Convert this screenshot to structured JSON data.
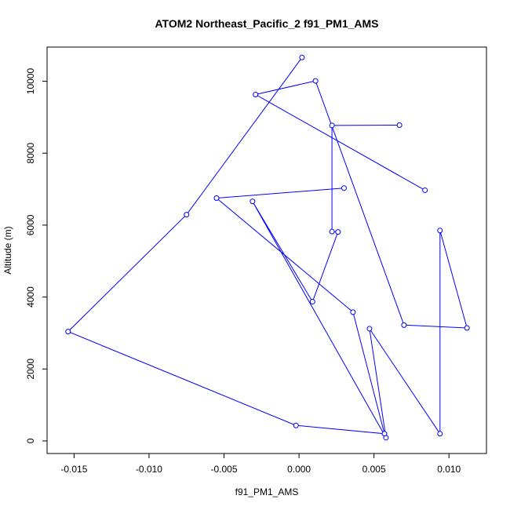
{
  "chart_data": {
    "type": "line",
    "title": "ATOM2 Northeast_Pacific_2 f91_PM1_AMS",
    "xlabel": "f91_PM1_AMS",
    "ylabel": "Altitude (m)",
    "xlim": [
      -0.0168,
      0.0125
    ],
    "ylim": [
      -350,
      10950
    ],
    "x_ticks": [
      -0.015,
      -0.01,
      -0.005,
      0.0,
      0.005,
      0.01
    ],
    "x_tick_labels": [
      "-0.015",
      "-0.010",
      "-0.005",
      "0.000",
      "0.005",
      "0.010"
    ],
    "y_ticks": [
      0,
      2000,
      4000,
      6000,
      8000,
      10000
    ],
    "y_tick_labels": [
      "0",
      "2000",
      "4000",
      "6000",
      "8000",
      "10000"
    ],
    "grid": false,
    "legend": "none",
    "series_color": "#0000ff",
    "series": [
      {
        "name": "",
        "marker": "open-circle",
        "x": [
          0.0067,
          0.0022,
          0.0022,
          0.0026,
          0.0009,
          -0.0031,
          0.0058,
          0.0047,
          0.0094,
          0.0094,
          0.0112,
          0.007,
          0.0011,
          -0.0029,
          0.0084
        ],
        "y": [
          8780,
          8770,
          5820,
          5810,
          3870,
          6660,
          90,
          3120,
          200,
          5850,
          3140,
          3220,
          10010,
          9630,
          6970
        ]
      },
      {
        "name": "",
        "marker": "open-circle",
        "x": [
          0.003,
          -0.0055,
          0.0036,
          0.0057,
          -0.0002,
          -0.0154,
          -0.0075,
          0.0002
        ],
        "y": [
          7030,
          6750,
          3580,
          200,
          430,
          3040,
          6290,
          10660
        ]
      }
    ]
  }
}
